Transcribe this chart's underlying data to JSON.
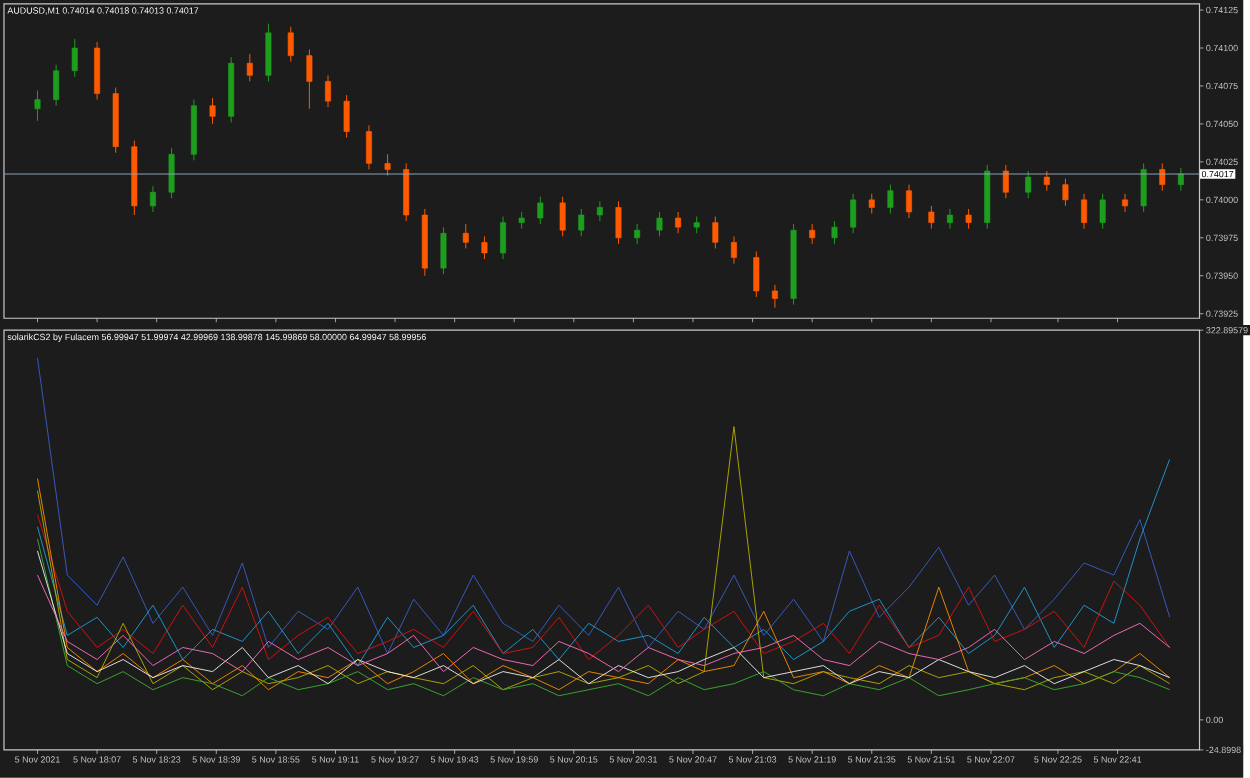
{
  "chart_data": [
    {
      "type": "candlestick",
      "title": "AUDUSD,M1 0.74014 0.74018 0.74013 0.74017",
      "x": [
        "2021-11-05T17:51",
        "2021-11-05T17:56",
        "2021-11-05T18:01",
        "2021-11-05T18:07",
        "2021-11-05T18:12",
        "2021-11-05T18:17",
        "2021-11-05T18:22",
        "2021-11-05T18:27",
        "2021-11-05T18:33",
        "2021-11-05T18:38",
        "2021-11-05T18:43",
        "2021-11-05T18:48",
        "2021-11-05T18:53",
        "2021-11-05T18:59",
        "2021-11-05T19:04",
        "2021-11-05T19:09",
        "2021-11-05T19:14",
        "2021-11-05T19:20",
        "2021-11-05T19:25",
        "2021-11-05T19:30",
        "2021-11-05T19:35",
        "2021-11-05T19:40",
        "2021-11-05T19:46",
        "2021-11-05T19:51",
        "2021-11-05T19:56",
        "2021-11-05T20:01",
        "2021-11-05T20:06",
        "2021-11-05T20:12",
        "2021-11-05T20:17",
        "2021-11-05T20:22",
        "2021-11-05T20:27",
        "2021-11-05T20:32",
        "2021-11-05T20:38",
        "2021-11-05T20:43",
        "2021-11-05T20:48",
        "2021-11-05T20:53",
        "2021-11-05T20:58",
        "2021-11-05T21:04",
        "2021-11-05T21:09",
        "2021-11-05T21:14",
        "2021-11-05T21:19",
        "2021-11-05T21:25",
        "2021-11-05T21:30",
        "2021-11-05T21:35",
        "2021-11-05T21:40",
        "2021-11-05T21:45",
        "2021-11-05T21:51",
        "2021-11-05T21:56",
        "2021-11-05T22:01",
        "2021-11-05T22:06",
        "2021-11-05T22:11",
        "2021-11-05T22:17",
        "2021-11-05T22:22",
        "2021-11-05T22:27",
        "2021-11-05T22:32",
        "2021-11-05T22:37",
        "2021-11-05T22:43",
        "2021-11-05T22:48",
        "2021-11-05T22:53",
        "2021-11-05T22:58"
      ],
      "ohlc": [
        [
          0.7406,
          0.74072,
          0.74052,
          0.74066
        ],
        [
          0.74066,
          0.74089,
          0.74062,
          0.74085
        ],
        [
          0.74085,
          0.74106,
          0.74081,
          0.741
        ],
        [
          0.741,
          0.74104,
          0.74066,
          0.7407
        ],
        [
          0.7407,
          0.74074,
          0.74031,
          0.74035
        ],
        [
          0.74035,
          0.74039,
          0.7399,
          0.73996
        ],
        [
          0.73996,
          0.74009,
          0.73992,
          0.74005
        ],
        [
          0.74005,
          0.74034,
          0.74001,
          0.7403
        ],
        [
          0.7403,
          0.74066,
          0.74026,
          0.74062
        ],
        [
          0.74062,
          0.74067,
          0.7405,
          0.74055
        ],
        [
          0.74055,
          0.74094,
          0.74051,
          0.7409
        ],
        [
          0.7409,
          0.74096,
          0.74078,
          0.74082
        ],
        [
          0.74082,
          0.74116,
          0.74078,
          0.7411
        ],
        [
          0.7411,
          0.74114,
          0.74091,
          0.74095
        ],
        [
          0.74095,
          0.74099,
          0.7406,
          0.74078
        ],
        [
          0.74078,
          0.74082,
          0.74061,
          0.74065
        ],
        [
          0.74065,
          0.74069,
          0.74041,
          0.74045
        ],
        [
          0.74045,
          0.74049,
          0.7402,
          0.74024
        ],
        [
          0.74024,
          0.7403,
          0.74016,
          0.7402
        ],
        [
          0.7402,
          0.74024,
          0.73986,
          0.7399
        ],
        [
          0.7399,
          0.73994,
          0.7395,
          0.73955
        ],
        [
          0.73955,
          0.73982,
          0.73951,
          0.73978
        ],
        [
          0.73978,
          0.73984,
          0.73968,
          0.73972
        ],
        [
          0.73972,
          0.73976,
          0.73961,
          0.73965
        ],
        [
          0.73965,
          0.73989,
          0.73961,
          0.73985
        ],
        [
          0.73985,
          0.73992,
          0.73981,
          0.73988
        ],
        [
          0.73988,
          0.74002,
          0.73984,
          0.73998
        ],
        [
          0.73998,
          0.74002,
          0.73976,
          0.7398
        ],
        [
          0.7398,
          0.73994,
          0.73976,
          0.7399
        ],
        [
          0.7399,
          0.73999,
          0.73986,
          0.73995
        ],
        [
          0.73995,
          0.73999,
          0.73971,
          0.73975
        ],
        [
          0.73975,
          0.73984,
          0.73971,
          0.7398
        ],
        [
          0.7398,
          0.73992,
          0.73976,
          0.73988
        ],
        [
          0.73988,
          0.73992,
          0.73978,
          0.73982
        ],
        [
          0.73982,
          0.73989,
          0.73978,
          0.73985
        ],
        [
          0.73985,
          0.73989,
          0.73968,
          0.73972
        ],
        [
          0.73972,
          0.73976,
          0.73958,
          0.73962
        ],
        [
          0.73962,
          0.73966,
          0.73936,
          0.7394
        ],
        [
          0.7394,
          0.73944,
          0.73929,
          0.73935
        ],
        [
          0.73935,
          0.73984,
          0.73931,
          0.7398
        ],
        [
          0.7398,
          0.73984,
          0.73971,
          0.73975
        ],
        [
          0.73975,
          0.73986,
          0.73971,
          0.73982
        ],
        [
          0.73982,
          0.74004,
          0.73978,
          0.74
        ],
        [
          0.74,
          0.74004,
          0.73991,
          0.73995
        ],
        [
          0.73995,
          0.7401,
          0.73991,
          0.74006
        ],
        [
          0.74006,
          0.7401,
          0.73988,
          0.73992
        ],
        [
          0.73992,
          0.73996,
          0.73981,
          0.73985
        ],
        [
          0.73985,
          0.73994,
          0.73981,
          0.7399
        ],
        [
          0.7399,
          0.73994,
          0.73981,
          0.73985
        ],
        [
          0.73985,
          0.74023,
          0.73981,
          0.74019
        ],
        [
          0.74019,
          0.74023,
          0.74001,
          0.74005
        ],
        [
          0.74005,
          0.74019,
          0.74001,
          0.74015
        ],
        [
          0.74015,
          0.74019,
          0.74006,
          0.7401
        ],
        [
          0.7401,
          0.74014,
          0.73996,
          0.74
        ],
        [
          0.74,
          0.74004,
          0.73981,
          0.73985
        ],
        [
          0.73985,
          0.74004,
          0.73981,
          0.74
        ],
        [
          0.74,
          0.74004,
          0.73992,
          0.73996
        ],
        [
          0.73996,
          0.74024,
          0.73992,
          0.7402
        ],
        [
          0.7402,
          0.74024,
          0.74006,
          0.7401
        ],
        [
          0.7401,
          0.74021,
          0.74006,
          0.74017
        ]
      ],
      "xlim": [
        "2021-11-05T17:42",
        "2021-11-05T23:03"
      ],
      "xticks": [
        {
          "value": "2021-11-05T17:51",
          "label": null
        },
        {
          "value": "2021-11-05T18:07",
          "label": null
        },
        {
          "value": "2021-11-05T18:23",
          "label": null
        },
        {
          "value": "2021-11-05T18:39",
          "label": null
        },
        {
          "value": "2021-11-05T18:55",
          "label": null
        },
        {
          "value": "2021-11-05T19:11",
          "label": null
        },
        {
          "value": "2021-11-05T19:27",
          "label": null
        },
        {
          "value": "2021-11-05T19:43",
          "label": null
        },
        {
          "value": "2021-11-05T19:59",
          "label": null
        },
        {
          "value": "2021-11-05T20:15",
          "label": null
        },
        {
          "value": "2021-11-05T20:31",
          "label": null
        },
        {
          "value": "2021-11-05T20:47",
          "label": null
        },
        {
          "value": "2021-11-05T21:03",
          "label": null
        },
        {
          "value": "2021-11-05T21:19",
          "label": null
        },
        {
          "value": "2021-11-05T21:35",
          "label": null
        },
        {
          "value": "2021-11-05T21:51",
          "label": null
        },
        {
          "value": "2021-11-05T22:07",
          "label": null
        },
        {
          "value": "2021-11-05T22:25",
          "label": null
        },
        {
          "value": "2021-11-05T22:41",
          "label": null
        }
      ],
      "ylim": [
        0.73922,
        0.74129
      ],
      "yticks": [
        {
          "value": 0.73925,
          "label": "0.73925"
        },
        {
          "value": 0.7395,
          "label": "0.73950"
        },
        {
          "value": 0.73975,
          "label": "0.73975"
        },
        {
          "value": 0.74,
          "label": "0.74000"
        },
        {
          "value": 0.74025,
          "label": "0.74025"
        },
        {
          "value": 0.7405,
          "label": "0.74050"
        },
        {
          "value": 0.74075,
          "label": "0.74075"
        },
        {
          "value": 0.741,
          "label": "0.74100"
        },
        {
          "value": 0.74125,
          "label": "0.74125"
        }
      ],
      "tick_labels": "y",
      "ref_lines": [
        {
          "axis": "y",
          "value": 0.74017,
          "label": "0.74017",
          "color": "#8fa3b8"
        }
      ]
    },
    {
      "type": "line",
      "title": "solarikCS2 by Fulacem 56.99947 51.99974 42.99969 138.99878 145.99869 58.00000 64.99947 58.99956",
      "x": [
        "2021-11-05T17:51",
        "2021-11-05T17:59",
        "2021-11-05T18:07",
        "2021-11-05T18:14",
        "2021-11-05T18:22",
        "2021-11-05T18:30",
        "2021-11-05T18:38",
        "2021-11-05T18:46",
        "2021-11-05T18:53",
        "2021-11-05T19:01",
        "2021-11-05T19:09",
        "2021-11-05T19:17",
        "2021-11-05T19:25",
        "2021-11-05T19:32",
        "2021-11-05T19:40",
        "2021-11-05T19:48",
        "2021-11-05T19:56",
        "2021-11-05T20:04",
        "2021-11-05T20:11",
        "2021-11-05T20:19",
        "2021-11-05T20:27",
        "2021-11-05T20:35",
        "2021-11-05T20:43",
        "2021-11-05T20:50",
        "2021-11-05T20:58",
        "2021-11-05T21:06",
        "2021-11-05T21:14",
        "2021-11-05T21:22",
        "2021-11-05T21:29",
        "2021-11-05T21:37",
        "2021-11-05T21:45",
        "2021-11-05T21:53",
        "2021-11-05T22:01",
        "2021-11-05T22:08",
        "2021-11-05T22:16",
        "2021-11-05T22:24",
        "2021-11-05T22:32",
        "2021-11-05T22:40",
        "2021-11-05T22:47",
        "2021-11-05T22:55"
      ],
      "series": [
        {
          "color": "#3a5fcd",
          "values": [
            300,
            120,
            95,
            135,
            80,
            110,
            70,
            130,
            60,
            90,
            75,
            110,
            55,
            100,
            70,
            120,
            80,
            65,
            95,
            70,
            110,
            60,
            90,
            75,
            120,
            70,
            100,
            65,
            140,
            85,
            110,
            143,
            95,
            120,
            75,
            100,
            130,
            120,
            166,
            85
          ]
        },
        {
          "color": "#1e9fd8",
          "values": [
            160,
            70,
            85,
            60,
            95,
            50,
            75,
            65,
            90,
            55,
            80,
            45,
            85,
            60,
            70,
            95,
            55,
            75,
            50,
            80,
            65,
            70,
            55,
            85,
            60,
            75,
            50,
            65,
            90,
            100,
            60,
            85,
            55,
            70,
            110,
            60,
            95,
            80,
            150,
            216
          ]
        },
        {
          "color": "#e01010",
          "values": [
            170,
            90,
            60,
            75,
            55,
            95,
            60,
            110,
            50,
            70,
            85,
            55,
            65,
            75,
            60,
            90,
            55,
            60,
            85,
            50,
            70,
            95,
            60,
            75,
            90,
            55,
            65,
            80,
            55,
            95,
            60,
            70,
            110,
            65,
            75,
            90,
            60,
            115,
            95,
            60
          ]
        },
        {
          "color": "#ff8c00",
          "values": [
            200,
            60,
            40,
            55,
            35,
            50,
            30,
            45,
            25,
            40,
            35,
            50,
            30,
            40,
            55,
            30,
            45,
            35,
            25,
            40,
            35,
            30,
            50,
            40,
            45,
            90,
            35,
            40,
            30,
            45,
            35,
            110,
            40,
            30,
            35,
            45,
            30,
            40,
            55,
            35
          ]
        },
        {
          "color": "#b8b000",
          "values": [
            190,
            50,
            35,
            80,
            30,
            45,
            25,
            40,
            30,
            35,
            45,
            30,
            40,
            35,
            30,
            45,
            25,
            35,
            40,
            30,
            35,
            45,
            30,
            40,
            243,
            35,
            30,
            40,
            35,
            30,
            45,
            35,
            40,
            30,
            25,
            35,
            40,
            30,
            45,
            30
          ]
        },
        {
          "color": "#3cb030",
          "values": [
            150,
            45,
            30,
            40,
            25,
            35,
            30,
            20,
            35,
            25,
            30,
            40,
            25,
            30,
            20,
            35,
            25,
            30,
            20,
            25,
            30,
            20,
            35,
            25,
            30,
            40,
            25,
            20,
            30,
            25,
            35,
            20,
            25,
            30,
            35,
            25,
            30,
            40,
            35,
            25
          ]
        },
        {
          "color": "#f0f0f0",
          "values": [
            140,
            55,
            40,
            50,
            35,
            45,
            40,
            60,
            35,
            45,
            30,
            50,
            40,
            35,
            45,
            30,
            40,
            35,
            50,
            30,
            45,
            35,
            40,
            50,
            60,
            35,
            40,
            45,
            30,
            40,
            35,
            50,
            40,
            35,
            45,
            30,
            40,
            50,
            45,
            35
          ]
        },
        {
          "color": "#ff70c0",
          "values": [
            120,
            65,
            50,
            70,
            45,
            60,
            55,
            40,
            65,
            50,
            60,
            45,
            55,
            70,
            40,
            60,
            50,
            45,
            65,
            55,
            40,
            60,
            50,
            45,
            55,
            60,
            70,
            50,
            45,
            65,
            55,
            50,
            60,
            75,
            50,
            65,
            55,
            70,
            80,
            60
          ]
        }
      ],
      "xlim": [
        "2021-11-05T17:42",
        "2021-11-05T23:03"
      ],
      "xticks": [
        {
          "value": "2021-11-05T17:51",
          "label": "5 Nov 2021"
        },
        {
          "value": "2021-11-05T18:07",
          "label": "5 Nov 18:07"
        },
        {
          "value": "2021-11-05T18:23",
          "label": "5 Nov 18:23"
        },
        {
          "value": "2021-11-05T18:39",
          "label": "5 Nov 18:39"
        },
        {
          "value": "2021-11-05T18:55",
          "label": "5 Nov 18:55"
        },
        {
          "value": "2021-11-05T19:11",
          "label": "5 Nov 19:11"
        },
        {
          "value": "2021-11-05T19:27",
          "label": "5 Nov 19:27"
        },
        {
          "value": "2021-11-05T19:43",
          "label": "5 Nov 19:43"
        },
        {
          "value": "2021-11-05T19:59",
          "label": "5 Nov 19:59"
        },
        {
          "value": "2021-11-05T20:15",
          "label": "5 Nov 20:15"
        },
        {
          "value": "2021-11-05T20:31",
          "label": "5 Nov 20:31"
        },
        {
          "value": "2021-11-05T20:47",
          "label": "5 Nov 20:47"
        },
        {
          "value": "2021-11-05T21:03",
          "label": "5 Nov 21:03"
        },
        {
          "value": "2021-11-05T21:19",
          "label": "5 Nov 21:19"
        },
        {
          "value": "2021-11-05T21:35",
          "label": "5 Nov 21:35"
        },
        {
          "value": "2021-11-05T21:51",
          "label": "5 Nov 21:51"
        },
        {
          "value": "2021-11-05T22:07",
          "label": "5 Nov 22:07"
        },
        {
          "value": "2021-11-05T22:25",
          "label": "5 Nov 22:25"
        },
        {
          "value": "2021-11-05T22:41",
          "label": "5 Nov 22:41"
        }
      ],
      "ylim": [
        -24.8998,
        322.89579
      ],
      "yticks": [
        {
          "value": -24.8998,
          "label": "-24.8998"
        },
        {
          "value": 0,
          "label": "0.00"
        },
        {
          "value": 322.89579,
          "label": "322.89579"
        }
      ]
    }
  ]
}
